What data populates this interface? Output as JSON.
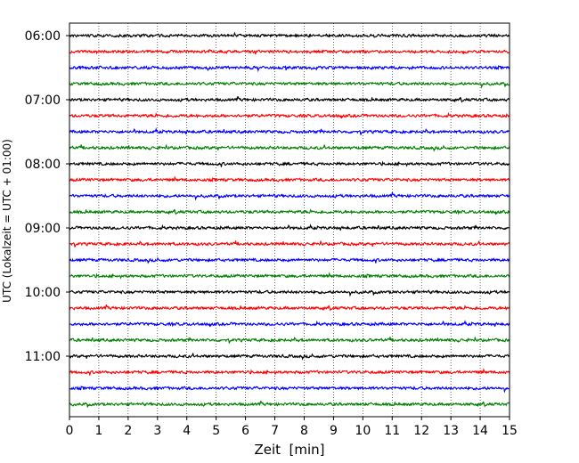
{
  "chart_data": {
    "type": "line",
    "title": "",
    "xlabel": "Zeit  [min]",
    "ylabel": "UTC (Lokalzeit = UTC + 01:00)",
    "xlim": [
      0,
      15
    ],
    "xticks": [
      0,
      1,
      2,
      3,
      4,
      5,
      6,
      7,
      8,
      9,
      10,
      11,
      12,
      13,
      14,
      15
    ],
    "yticks": [
      "06:00",
      "07:00",
      "08:00",
      "09:00",
      "10:00",
      "11:00"
    ],
    "traces_per_tick": 4,
    "trace_minutes": 15,
    "trace_colors": [
      "#000000",
      "#ff0000",
      "#0000ff",
      "#008000"
    ],
    "grid": {
      "x": true,
      "y": false
    },
    "trace_start_times": [
      "06:00",
      "06:15",
      "06:30",
      "06:45",
      "07:00",
      "07:15",
      "07:30",
      "07:45",
      "08:00",
      "08:15",
      "08:30",
      "08:45",
      "09:00",
      "09:15",
      "09:30",
      "09:45",
      "10:00",
      "10:15",
      "10:30",
      "10:45",
      "11:00",
      "11:15",
      "11:30",
      "11:45"
    ]
  }
}
